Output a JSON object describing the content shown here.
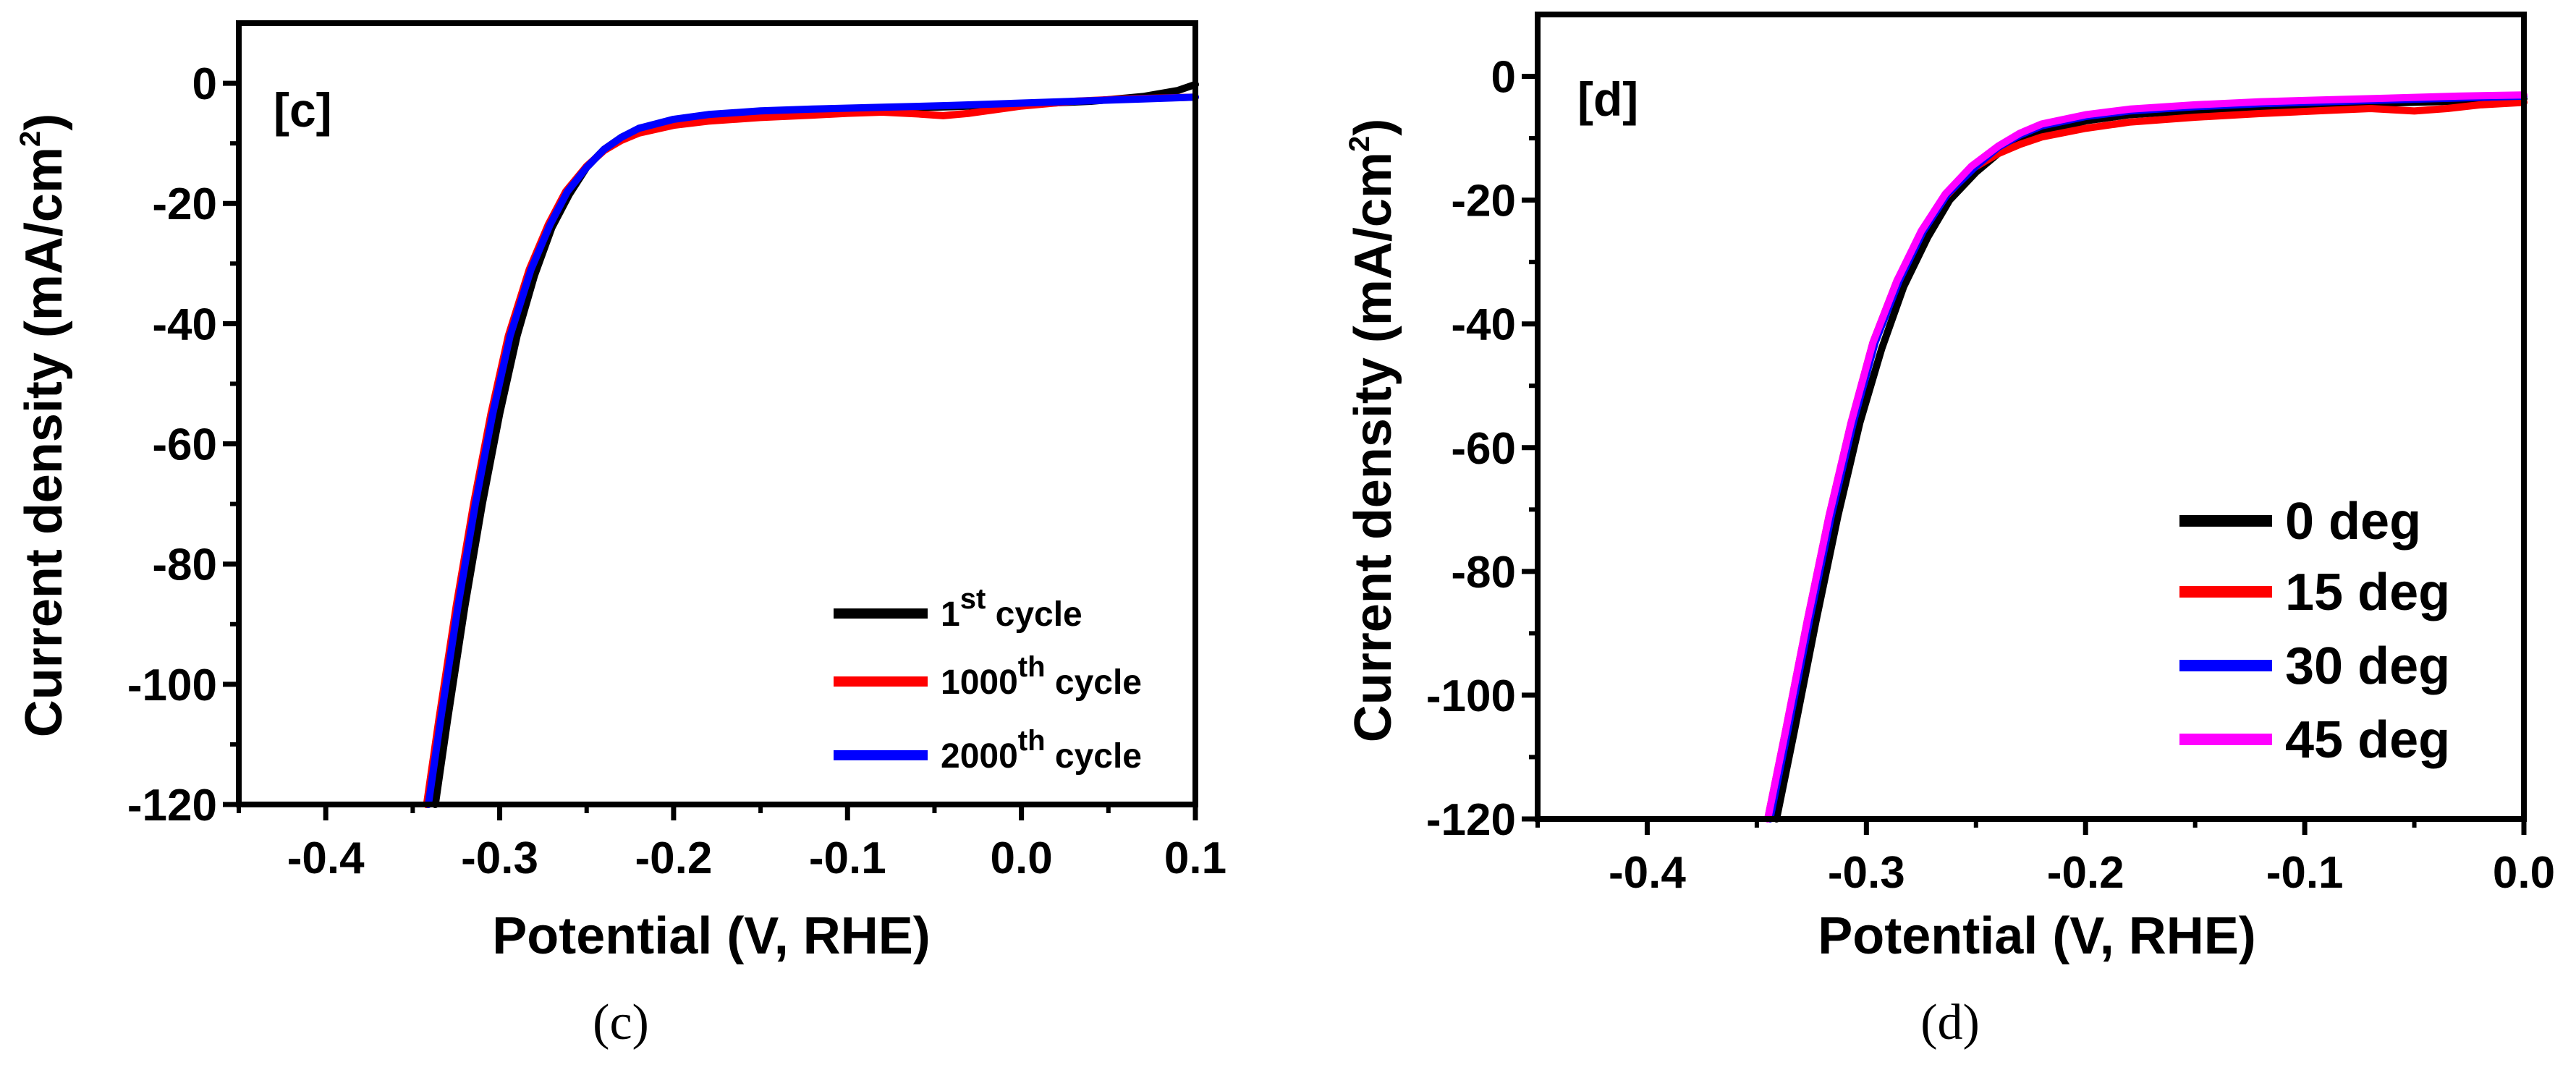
{
  "chart_data": [
    {
      "panel_id": "c",
      "type": "line",
      "panel_label": "[c]",
      "caption": "(c)",
      "xlabel": "Potential (V, RHE)",
      "ylabel": "Current density (mA/cm",
      "ylabel_sup": "2",
      "ylabel_end": ")",
      "xlim": [
        -0.45,
        0.1
      ],
      "ylim": [
        -120,
        10
      ],
      "xticks": [
        -0.4,
        -0.3,
        -0.2,
        -0.1,
        0.0,
        0.1
      ],
      "xtick_labels": [
        "-0.4",
        "-0.3",
        "-0.2",
        "-0.1",
        "0.0",
        "0.1"
      ],
      "yticks": [
        0,
        -20,
        -40,
        -60,
        -80,
        -100,
        -120
      ],
      "ytick_labels": [
        "0",
        "-20",
        "-40",
        "-60",
        "-80",
        "-100",
        "-120"
      ],
      "legend_location": "bottom-right",
      "series": [
        {
          "name": "1st cycle",
          "legend": {
            "pre": "1",
            "sup": "st",
            "post": " cycle"
          },
          "color": "#000000",
          "points": [
            [
              -0.337,
              -120
            ],
            [
              -0.33,
              -106
            ],
            [
              -0.32,
              -87
            ],
            [
              -0.31,
              -70
            ],
            [
              -0.3,
              -55
            ],
            [
              -0.29,
              -42
            ],
            [
              -0.28,
              -32
            ],
            [
              -0.27,
              -24
            ],
            [
              -0.26,
              -18.5
            ],
            [
              -0.25,
              -14
            ],
            [
              -0.24,
              -11
            ],
            [
              -0.23,
              -9
            ],
            [
              -0.22,
              -7.6
            ],
            [
              -0.2,
              -6.3
            ],
            [
              -0.18,
              -5.6
            ],
            [
              -0.15,
              -5
            ],
            [
              -0.12,
              -4.6
            ],
            [
              -0.08,
              -4.2
            ],
            [
              -0.04,
              -3.9
            ],
            [
              0.0,
              -3.5
            ],
            [
              0.04,
              -3
            ],
            [
              0.07,
              -2.2
            ],
            [
              0.09,
              -1.2
            ],
            [
              0.1,
              -0.2
            ]
          ]
        },
        {
          "name": "1000th cycle",
          "legend": {
            "pre": "1000",
            "sup": "th",
            "post": " cycle"
          },
          "color": "#ff0000",
          "points": [
            [
              -0.342,
              -120
            ],
            [
              -0.335,
              -106
            ],
            [
              -0.325,
              -87
            ],
            [
              -0.315,
              -70
            ],
            [
              -0.305,
              -55
            ],
            [
              -0.295,
              -42
            ],
            [
              -0.283,
              -31
            ],
            [
              -0.272,
              -23.5
            ],
            [
              -0.262,
              -18
            ],
            [
              -0.25,
              -13.8
            ],
            [
              -0.24,
              -11.2
            ],
            [
              -0.23,
              -9.5
            ],
            [
              -0.22,
              -8.3
            ],
            [
              -0.2,
              -7
            ],
            [
              -0.18,
              -6.3
            ],
            [
              -0.15,
              -5.7
            ],
            [
              -0.12,
              -5.3
            ],
            [
              -0.1,
              -5
            ],
            [
              -0.08,
              -4.8
            ],
            [
              -0.06,
              -5.1
            ],
            [
              -0.045,
              -5.4
            ],
            [
              -0.03,
              -5
            ],
            [
              0.0,
              -3.8
            ],
            [
              0.03,
              -3
            ],
            [
              0.06,
              -2.6
            ],
            [
              0.1,
              -2.3
            ]
          ]
        },
        {
          "name": "2000th cycle",
          "legend": {
            "pre": "2000",
            "sup": "th",
            "post": " cycle"
          },
          "color": "#0000ff",
          "points": [
            [
              -0.341,
              -120
            ],
            [
              -0.334,
              -106
            ],
            [
              -0.324,
              -87
            ],
            [
              -0.314,
              -70
            ],
            [
              -0.304,
              -55
            ],
            [
              -0.294,
              -42
            ],
            [
              -0.282,
              -31
            ],
            [
              -0.271,
              -23.5
            ],
            [
              -0.261,
              -18
            ],
            [
              -0.25,
              -14
            ],
            [
              -0.24,
              -11
            ],
            [
              -0.23,
              -9
            ],
            [
              -0.22,
              -7.5
            ],
            [
              -0.2,
              -6
            ],
            [
              -0.18,
              -5.2
            ],
            [
              -0.15,
              -4.6
            ],
            [
              -0.12,
              -4.3
            ],
            [
              -0.08,
              -4
            ],
            [
              -0.04,
              -3.7
            ],
            [
              0.0,
              -3.3
            ],
            [
              0.04,
              -2.9
            ],
            [
              0.07,
              -2.6
            ],
            [
              0.1,
              -2.3
            ]
          ]
        }
      ]
    },
    {
      "panel_id": "d",
      "type": "line",
      "panel_label": "[d]",
      "caption": "(d)",
      "xlabel": "Potential (V, RHE)",
      "ylabel": "Current density (mA/cm",
      "ylabel_sup": "2",
      "ylabel_end": ")",
      "xlim": [
        -0.45,
        0.0
      ],
      "ylim": [
        -120,
        10
      ],
      "xticks": [
        -0.4,
        -0.3,
        -0.2,
        -0.1,
        0.0
      ],
      "xtick_labels": [
        "-0.4",
        "-0.3",
        "-0.2",
        "-0.1",
        "0.0"
      ],
      "yticks": [
        0,
        -20,
        -40,
        -60,
        -80,
        -100,
        -120
      ],
      "ytick_labels": [
        "0",
        "-20",
        "-40",
        "-60",
        "-80",
        "-100",
        "-120"
      ],
      "legend_location": "bottom-right",
      "series": [
        {
          "name": "0 deg",
          "legend": {
            "pre": "0 deg",
            "sup": "",
            "post": ""
          },
          "color": "#000000",
          "points": [
            [
              -0.341,
              -120
            ],
            [
              -0.333,
              -106
            ],
            [
              -0.323,
              -88
            ],
            [
              -0.313,
              -71
            ],
            [
              -0.303,
              -56
            ],
            [
              -0.293,
              -44
            ],
            [
              -0.283,
              -34
            ],
            [
              -0.272,
              -26
            ],
            [
              -0.262,
              -20
            ],
            [
              -0.25,
              -15.5
            ],
            [
              -0.24,
              -12.5
            ],
            [
              -0.23,
              -10.5
            ],
            [
              -0.22,
              -9
            ],
            [
              -0.2,
              -7.2
            ],
            [
              -0.18,
              -6.2
            ],
            [
              -0.15,
              -5.5
            ],
            [
              -0.12,
              -5
            ],
            [
              -0.09,
              -4.6
            ],
            [
              -0.06,
              -4.3
            ],
            [
              -0.03,
              -4
            ],
            [
              0.0,
              -3.6
            ]
          ]
        },
        {
          "name": "15 deg",
          "legend": {
            "pre": "15 deg",
            "sup": "",
            "post": ""
          },
          "color": "#ff0000",
          "points": [
            [
              -0.345,
              -120
            ],
            [
              -0.337,
              -106
            ],
            [
              -0.327,
              -88
            ],
            [
              -0.317,
              -71
            ],
            [
              -0.307,
              -56
            ],
            [
              -0.297,
              -43
            ],
            [
              -0.286,
              -33
            ],
            [
              -0.275,
              -25.5
            ],
            [
              -0.264,
              -19.5
            ],
            [
              -0.252,
              -15
            ],
            [
              -0.24,
              -12.5
            ],
            [
              -0.23,
              -11
            ],
            [
              -0.22,
              -9.8
            ],
            [
              -0.2,
              -8.4
            ],
            [
              -0.18,
              -7.4
            ],
            [
              -0.15,
              -6.6
            ],
            [
              -0.12,
              -6
            ],
            [
              -0.09,
              -5.5
            ],
            [
              -0.07,
              -5.2
            ],
            [
              -0.05,
              -5.6
            ],
            [
              -0.035,
              -5.2
            ],
            [
              -0.02,
              -4.6
            ],
            [
              0.0,
              -4.2
            ]
          ]
        },
        {
          "name": "30 deg",
          "legend": {
            "pre": "30 deg",
            "sup": "",
            "post": ""
          },
          "color": "#0000ff",
          "points": [
            [
              -0.344,
              -120
            ],
            [
              -0.336,
              -106
            ],
            [
              -0.326,
              -88
            ],
            [
              -0.316,
              -71
            ],
            [
              -0.306,
              -56
            ],
            [
              -0.296,
              -43
            ],
            [
              -0.285,
              -33
            ],
            [
              -0.274,
              -25
            ],
            [
              -0.263,
              -19
            ],
            [
              -0.25,
              -14.5
            ],
            [
              -0.24,
              -11.5
            ],
            [
              -0.23,
              -9.5
            ],
            [
              -0.22,
              -8
            ],
            [
              -0.2,
              -6.5
            ],
            [
              -0.18,
              -5.6
            ],
            [
              -0.15,
              -4.9
            ],
            [
              -0.12,
              -4.4
            ],
            [
              -0.09,
              -4.1
            ],
            [
              -0.06,
              -3.8
            ],
            [
              -0.03,
              -3.5
            ],
            [
              0.0,
              -3.2
            ]
          ]
        },
        {
          "name": "45 deg",
          "legend": {
            "pre": "45 deg",
            "sup": "",
            "post": ""
          },
          "color": "#ff00ff",
          "points": [
            [
              -0.345,
              -120
            ],
            [
              -0.337,
              -106
            ],
            [
              -0.327,
              -88
            ],
            [
              -0.317,
              -71
            ],
            [
              -0.307,
              -56
            ],
            [
              -0.297,
              -43
            ],
            [
              -0.286,
              -33
            ],
            [
              -0.275,
              -25
            ],
            [
              -0.264,
              -19
            ],
            [
              -0.252,
              -14.5
            ],
            [
              -0.24,
              -11.3
            ],
            [
              -0.23,
              -9.2
            ],
            [
              -0.22,
              -7.7
            ],
            [
              -0.2,
              -6.2
            ],
            [
              -0.18,
              -5.3
            ],
            [
              -0.15,
              -4.6
            ],
            [
              -0.12,
              -4.1
            ],
            [
              -0.09,
              -3.8
            ],
            [
              -0.06,
              -3.5
            ],
            [
              -0.03,
              -3.2
            ],
            [
              0.0,
              -3
            ]
          ]
        }
      ]
    }
  ]
}
